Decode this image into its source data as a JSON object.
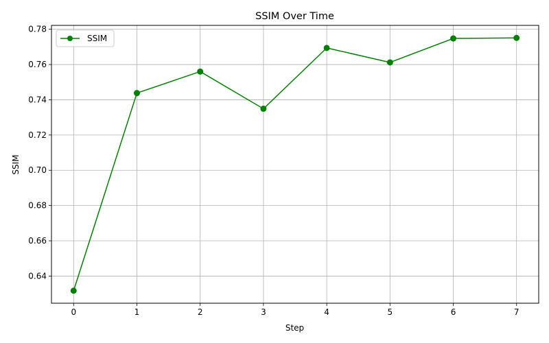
{
  "chart_data": {
    "type": "line",
    "title": "SSIM Over Time",
    "xlabel": "Step",
    "ylabel": "SSIM",
    "x": [
      0,
      1,
      2,
      3,
      4,
      5,
      6,
      7
    ],
    "series": [
      {
        "name": "SSIM",
        "values": [
          0.6317,
          0.7438,
          0.756,
          0.7349,
          0.7694,
          0.7612,
          0.7748,
          0.7751
        ],
        "color": "#008000",
        "marker": "circle"
      }
    ],
    "xticks": [
      0,
      1,
      2,
      3,
      4,
      5,
      6,
      7
    ],
    "yticks": [
      0.64,
      0.66,
      0.68,
      0.7,
      0.72,
      0.74,
      0.76,
      0.78
    ],
    "ytick_labels": [
      "0.64",
      "0.66",
      "0.68",
      "0.70",
      "0.72",
      "0.74",
      "0.76",
      "0.78"
    ],
    "xlim": [
      -0.35,
      7.35
    ],
    "ylim": [
      0.6246,
      0.7822
    ],
    "grid": true,
    "legend_position": "top-left"
  }
}
